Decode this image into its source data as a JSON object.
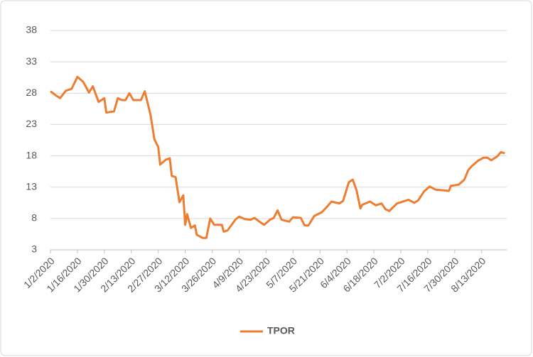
{
  "chart_data": {
    "type": "line",
    "x": [
      "1/2/2020",
      "1/5/2020",
      "1/7/2020",
      "1/10/2020",
      "1/13/2020",
      "1/16/2020",
      "1/19/2020",
      "1/22/2020",
      "1/24/2020",
      "1/27/2020",
      "1/30/2020",
      "1/31/2020",
      "2/4/2020",
      "2/6/2020",
      "2/8/2020",
      "2/10/2020",
      "2/12/2020",
      "2/14/2020",
      "2/18/2020",
      "2/20/2020",
      "2/23/2020",
      "2/25/2020",
      "2/27/2020",
      "2/28/2020",
      "3/2/2020",
      "3/4/2020",
      "3/5/2020",
      "3/7/2020",
      "3/9/2020",
      "3/11/2020",
      "3/12/2020",
      "3/13/2020",
      "3/15/2020",
      "3/17/2020",
      "3/18/2020",
      "3/21/2020",
      "3/23/2020",
      "3/25/2020",
      "3/27/2020",
      "3/31/2020",
      "4/1/2020",
      "4/3/2020",
      "4/7/2020",
      "4/9/2020",
      "4/12/2020",
      "4/15/2020",
      "4/17/2020",
      "4/20/2020",
      "4/22/2020",
      "4/25/2020",
      "4/27/2020",
      "4/29/2020",
      "5/1/2020",
      "5/5/2020",
      "5/7/2020",
      "5/11/2020",
      "5/13/2020",
      "5/15/2020",
      "5/18/2020",
      "5/22/2020",
      "5/25/2020",
      "5/27/2020",
      "5/31/2020",
      "6/2/2020",
      "6/5/2020",
      "6/7/2020",
      "6/9/2020",
      "6/11/2020",
      "6/12/2020",
      "6/16/2020",
      "6/19/2020",
      "6/22/2020",
      "6/24/2020",
      "6/26/2020",
      "6/30/2020",
      "7/6/2020",
      "7/9/2020",
      "7/11/2020",
      "7/14/2020",
      "7/17/2020",
      "7/20/2020",
      "7/24/2020",
      "7/27/2020",
      "7/28/2020",
      "8/1/2020",
      "8/4/2020",
      "8/6/2020",
      "8/8/2020",
      "8/11/2020",
      "8/14/2020",
      "8/16/2020",
      "8/18/2020",
      "8/21/2020",
      "8/23/2020",
      "8/25/2020"
    ],
    "series": [
      {
        "name": "TPOR",
        "color": "#ed7d31",
        "values": [
          28.3,
          27.6,
          27.2,
          28.4,
          28.7,
          30.6,
          29.8,
          28.1,
          29.1,
          26.6,
          27.2,
          24.9,
          25.1,
          27.2,
          26.9,
          26.9,
          28.0,
          26.9,
          26.9,
          28.3,
          24.5,
          20.6,
          19.4,
          16.6,
          17.4,
          17.6,
          14.8,
          14.6,
          10.6,
          11.7,
          7.0,
          8.7,
          6.5,
          6.9,
          5.4,
          4.9,
          4.9,
          8.0,
          7.0,
          7.0,
          5.9,
          6.1,
          7.8,
          8.3,
          7.9,
          7.8,
          8.1,
          7.4,
          7.0,
          7.8,
          8.1,
          9.3,
          7.8,
          7.5,
          8.2,
          8.1,
          6.9,
          6.9,
          8.4,
          9.0,
          10.0,
          10.7,
          10.4,
          10.8,
          13.8,
          14.2,
          12.5,
          9.6,
          10.2,
          10.7,
          10.1,
          10.4,
          9.5,
          9.2,
          10.4,
          11.0,
          10.5,
          10.9,
          12.3,
          13.1,
          12.6,
          12.5,
          12.4,
          13.2,
          13.4,
          14.2,
          15.7,
          16.4,
          17.2,
          17.7,
          17.7,
          17.3,
          17.9,
          18.6,
          18.4
        ]
      }
    ],
    "xlim": [
      "1/2/2020",
      "8/26/2020"
    ],
    "xticks": [
      "1/2/2020",
      "1/16/2020",
      "1/30/2020",
      "2/13/2020",
      "2/27/2020",
      "3/12/2020",
      "3/26/2020",
      "4/9/2020",
      "4/23/2020",
      "5/7/2020",
      "5/21/2020",
      "6/4/2020",
      "6/18/2020",
      "7/2/2020",
      "7/16/2020",
      "7/30/2020",
      "8/13/2020"
    ],
    "ylim": [
      3,
      38
    ],
    "yticks": [
      3,
      8,
      13,
      18,
      23,
      28,
      33,
      38
    ],
    "grid": true,
    "legend": "bottom"
  }
}
